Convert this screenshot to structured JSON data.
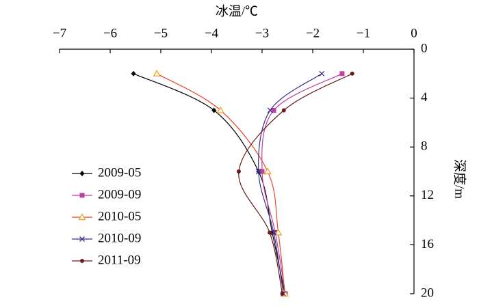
{
  "chart_data": {
    "type": "line",
    "title": "冰温/℃",
    "ylabel": "深度/m",
    "xlim": [
      -7,
      0
    ],
    "xticks": [
      {
        "value": -7,
        "label": "−7"
      },
      {
        "value": -6,
        "label": "−6"
      },
      {
        "value": -5,
        "label": "−5"
      },
      {
        "value": -4,
        "label": "−4"
      },
      {
        "value": -3,
        "label": "−3"
      },
      {
        "value": -2,
        "label": "−2"
      },
      {
        "value": -1,
        "label": "−1"
      },
      0
    ],
    "ylim": [
      0,
      20
    ],
    "yticks": [
      0,
      4,
      8,
      12,
      16,
      20
    ],
    "y_reversed": true,
    "legend": "left",
    "series": [
      {
        "name": "2009-05",
        "color": "#000000",
        "marker": "diamond",
        "x": [
          -5.54,
          -3.95,
          -3.07,
          -2.8,
          -2.55
        ],
        "values": [
          2,
          5,
          10,
          15,
          20
        ]
      },
      {
        "name": "2009-09",
        "color": "#c040a0",
        "marker": "square",
        "x": [
          -1.42,
          -2.77,
          -3.0,
          -2.74,
          -2.54
        ],
        "values": [
          2,
          5,
          10,
          15,
          20
        ]
      },
      {
        "name": "2010-05",
        "color": "#e8462a",
        "marker": "triangle",
        "x": [
          -5.08,
          -3.82,
          -2.89,
          -2.68,
          -2.55
        ],
        "values": [
          2,
          5,
          10,
          15,
          20
        ]
      },
      {
        "name": "2010-09",
        "color": "#3a2f8a",
        "marker": "cross",
        "x": [
          -1.82,
          -2.84,
          -3.07,
          -2.77,
          -2.58
        ],
        "values": [
          2,
          5,
          10,
          15,
          20
        ]
      },
      {
        "name": "2011-09",
        "color": "#6b1a1a",
        "marker": "circle",
        "x": [
          -1.22,
          -2.57,
          -3.46,
          -2.85,
          -2.6
        ],
        "values": [
          2,
          5,
          10,
          15,
          20
        ]
      }
    ]
  }
}
